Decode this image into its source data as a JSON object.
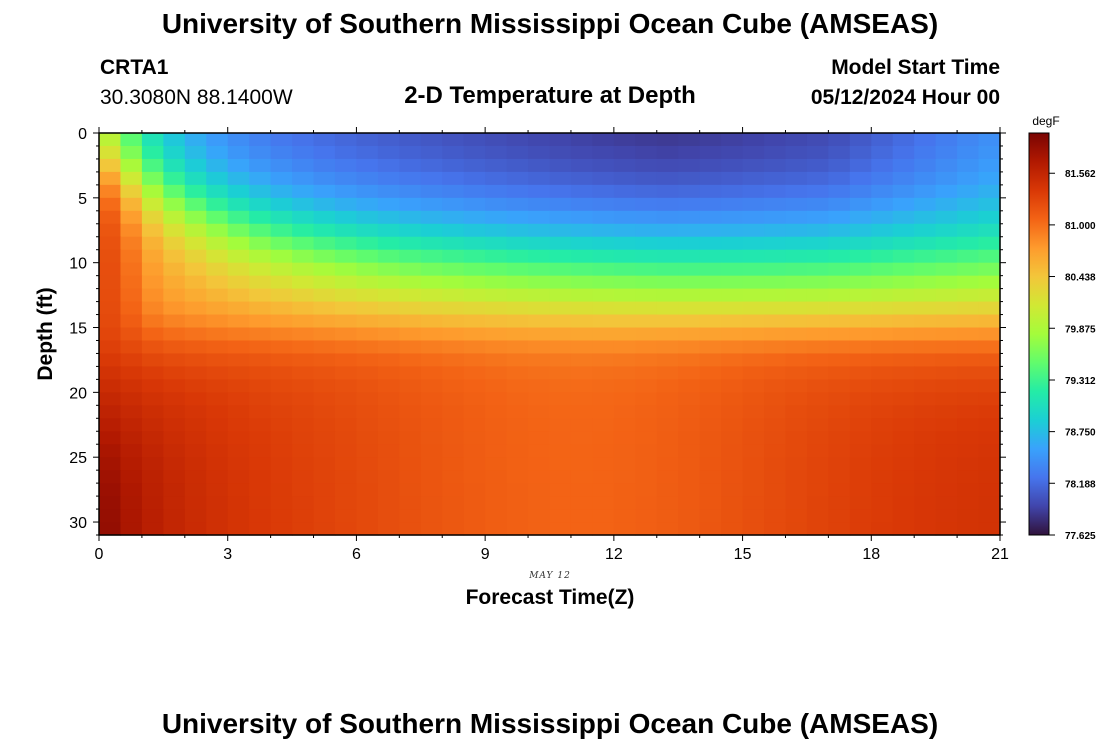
{
  "header": {
    "title": "University of Southern Mississippi Ocean Cube (AMSEAS)",
    "station": "CRTA1",
    "coordinates": "30.3080N  88.1400W",
    "model_start_label": "Model Start Time",
    "model_start_value": "05/12/2024 Hour 00"
  },
  "footer": {
    "title": "University of Southern Mississippi Ocean Cube (AMSEAS)"
  },
  "chart_data": {
    "type": "heatmap",
    "title": "2-D Temperature at Depth",
    "xlabel": "Forecast Time(Z)",
    "ylabel": "Depth (ft)",
    "date_label": "MAY 12",
    "x_range": [
      0,
      21
    ],
    "y_range": [
      0,
      31
    ],
    "x_ticks": [
      0,
      3,
      6,
      9,
      12,
      15,
      18,
      21
    ],
    "y_ticks": [
      0,
      5,
      10,
      15,
      20,
      25,
      30
    ],
    "colorbar": {
      "unit": "degF",
      "min": 77.625,
      "max": 82.0,
      "tick_values": [
        81.562,
        81.0,
        80.438,
        79.875,
        79.312,
        78.75,
        78.188,
        77.625
      ],
      "tick_labels": [
        "81.562",
        "81.000",
        "80.438",
        "79.875",
        "79.312",
        "78.750",
        "78.188",
        "77.625"
      ],
      "colors": [
        "#30123b",
        "#4145ab",
        "#4675ed",
        "#39a2fc",
        "#1bcfd4",
        "#24eca6",
        "#61fc6c",
        "#a4fc3b",
        "#d1e834",
        "#f3c63a",
        "#fe9b2d",
        "#f36315",
        "#d93806",
        "#b11901",
        "#7a0403"
      ]
    },
    "grid_x_count": 42,
    "grid_y_count": 31,
    "field_description": "Surface layer warm early hours cooling to about 77.7 degF around hour 13; strong thermocline near 10-12 ft; warm bottom layer 81-82 degF"
  }
}
